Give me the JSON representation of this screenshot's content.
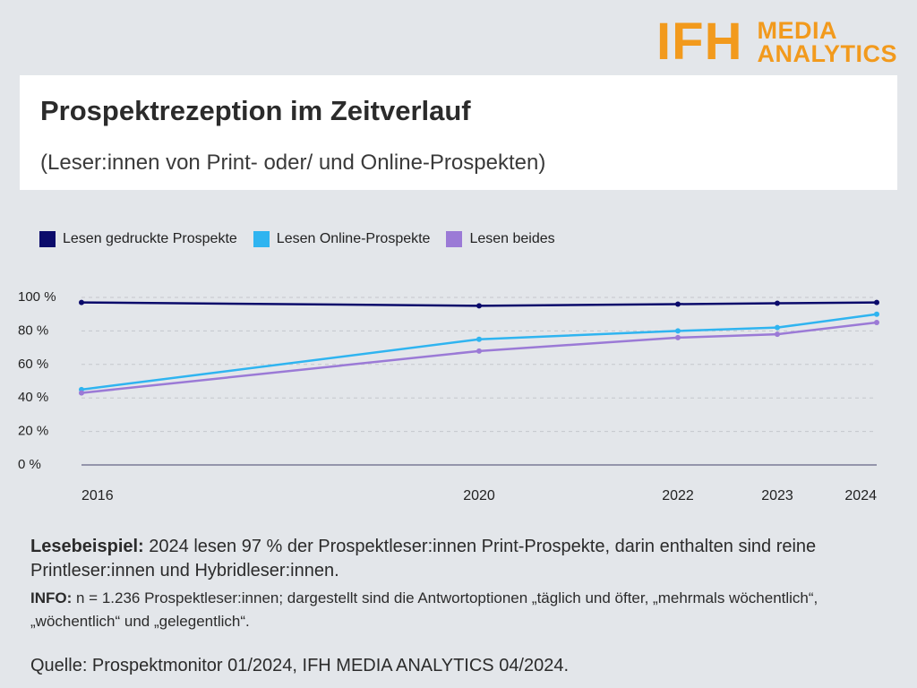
{
  "logo": {
    "brand": "IFH",
    "line1": "MEDIA",
    "line2": "ANALYTICS"
  },
  "header": {
    "title": "Prospektrezeption im Zeitverlauf",
    "subtitle": "(Leser:innen von Print- oder/ und Online-Prospekten)"
  },
  "notes": {
    "example_label": "Lesebeispiel:",
    "example_text": " 2024 lesen 97 % der Prospektleser:innen Print-Prospekte, darin enthalten sind reine Printleser:innen und Hybridleser:innen.",
    "info_label": "INFO:",
    "info_text": " n = 1.236 Prospektleser:innen; dargestellt sind die Antwortoptionen „täglich und öfter, „mehrmals wöchentlich“, „wöchentlich“ und „gelegentlich“.",
    "source_label": "Quelle:",
    "source_text": " Prospektmonitor 01/2024, IFH MEDIA ANALYTICS 04/2024."
  },
  "chart_data": {
    "type": "line",
    "title": "Prospektrezeption im Zeitverlauf",
    "subtitle": "(Leser:innen von Print- oder/ und Online-Prospekten)",
    "x": [
      2016,
      2020,
      2022,
      2023,
      2024
    ],
    "x_tick_labels": [
      "2016",
      "2020",
      "2022",
      "2023",
      "2024"
    ],
    "y_tick_labels": [
      "0 %",
      "20 %",
      "40 %",
      "60 %",
      "80 %",
      "100 %"
    ],
    "ylim": [
      0,
      100
    ],
    "grid": "horizontal dashed",
    "legend_position": "top-left",
    "series": [
      {
        "name": "Lesen gedruckte Prospekte",
        "color": "#0b0b6b",
        "values": [
          97,
          95,
          96,
          96.5,
          97
        ]
      },
      {
        "name": "Lesen Online-Prospekte",
        "color": "#2fb4f0",
        "values": [
          45,
          75,
          80,
          82,
          90
        ]
      },
      {
        "name": "Lesen beides",
        "color": "#9b7ad6",
        "values": [
          43,
          68,
          76,
          78,
          85
        ]
      }
    ]
  }
}
